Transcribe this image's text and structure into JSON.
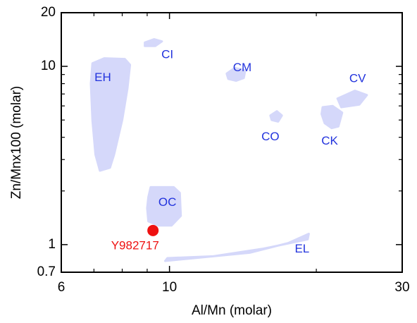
{
  "chart_data": {
    "type": "scatter",
    "title": "",
    "xlabel": "Al/Mn (molar)",
    "ylabel": "Zn/Mnx100 (molar)",
    "xscale": "log",
    "yscale": "log",
    "xlim": [
      6,
      30
    ],
    "ylim": [
      0.7,
      20
    ],
    "x_major_ticks": [
      6,
      10,
      30
    ],
    "x_minor_ticks": [
      7,
      8,
      9,
      20
    ],
    "y_major_ticks": [
      0.7,
      1,
      10,
      20
    ],
    "y_minor_ticks": [
      2,
      3,
      4,
      5,
      6,
      7,
      8,
      9
    ],
    "grid": false,
    "colors": {
      "region_fill": "#d5d8fa",
      "region_label": "#2233dd",
      "point": "#ee1111",
      "axes": "#000000"
    },
    "regions": [
      {
        "name": "EH",
        "label_at": [
          7.3,
          8.6
        ],
        "polygon": [
          [
            6.95,
            10.4
          ],
          [
            7.35,
            11.1
          ],
          [
            8.1,
            11.0
          ],
          [
            8.3,
            10.2
          ],
          [
            8.2,
            7.5
          ],
          [
            8.0,
            5.0
          ],
          [
            7.7,
            3.2
          ],
          [
            7.55,
            2.7
          ],
          [
            7.2,
            2.6
          ],
          [
            7.05,
            3.2
          ],
          [
            6.95,
            5
          ],
          [
            6.9,
            8
          ]
        ]
      },
      {
        "name": "CI",
        "label_at": [
          9.9,
          11.6
        ],
        "polygon": [
          [
            8.9,
            13.6
          ],
          [
            9.3,
            14.2
          ],
          [
            9.65,
            13.8
          ],
          [
            9.35,
            13.0
          ],
          [
            8.9,
            13.0
          ]
        ]
      },
      {
        "name": "CM",
        "label_at": [
          14.1,
          9.8
        ],
        "polygon": [
          [
            13.1,
            9.1
          ],
          [
            13.6,
            9.8
          ],
          [
            14.3,
            9.5
          ],
          [
            14.2,
            8.6
          ],
          [
            13.7,
            8.3
          ],
          [
            13.2,
            8.5
          ]
        ]
      },
      {
        "name": "CV",
        "label_at": [
          24.3,
          8.5
        ],
        "polygon": [
          [
            22.1,
            6.6
          ],
          [
            24.0,
            7.3
          ],
          [
            25.4,
            6.9
          ],
          [
            24.5,
            6.1
          ],
          [
            22.5,
            5.9
          ]
        ]
      },
      {
        "name": "CO",
        "label_at": [
          16.1,
          4.0
        ],
        "polygon": [
          [
            16.1,
            5.3
          ],
          [
            16.6,
            5.6
          ],
          [
            17.0,
            5.3
          ],
          [
            16.7,
            4.9
          ],
          [
            16.2,
            5.0
          ]
        ]
      },
      {
        "name": "CK",
        "label_at": [
          21.3,
          3.8
        ],
        "polygon": [
          [
            20.6,
            5.9
          ],
          [
            21.6,
            6.0
          ],
          [
            22.6,
            5.5
          ],
          [
            22.2,
            4.6
          ],
          [
            21.5,
            4.5
          ],
          [
            20.8,
            4.8
          ],
          [
            20.5,
            5.4
          ]
        ]
      },
      {
        "name": "OC",
        "label_at": [
          9.9,
          1.72
        ],
        "polygon": [
          [
            9.05,
            1.85
          ],
          [
            9.15,
            2.1
          ],
          [
            10.2,
            2.1
          ],
          [
            10.5,
            1.95
          ],
          [
            10.55,
            1.45
          ],
          [
            10.1,
            1.28
          ],
          [
            9.5,
            1.28
          ],
          [
            9.05,
            1.35
          ],
          [
            9.0,
            1.6
          ]
        ]
      },
      {
        "name": "EL",
        "label_at": [
          18.7,
          0.94
        ],
        "polygon": [
          [
            9.8,
            0.81
          ],
          [
            14.6,
            0.9
          ],
          [
            17.5,
            1.02
          ],
          [
            19.3,
            1.15
          ],
          [
            19.2,
            1.07
          ],
          [
            15.6,
            0.95
          ],
          [
            12.3,
            0.86
          ],
          [
            9.9,
            0.84
          ]
        ]
      }
    ],
    "points": [
      {
        "name": "Y982717",
        "x": 9.25,
        "y": 1.2,
        "label_at": [
          8.5,
          0.98
        ]
      }
    ]
  }
}
